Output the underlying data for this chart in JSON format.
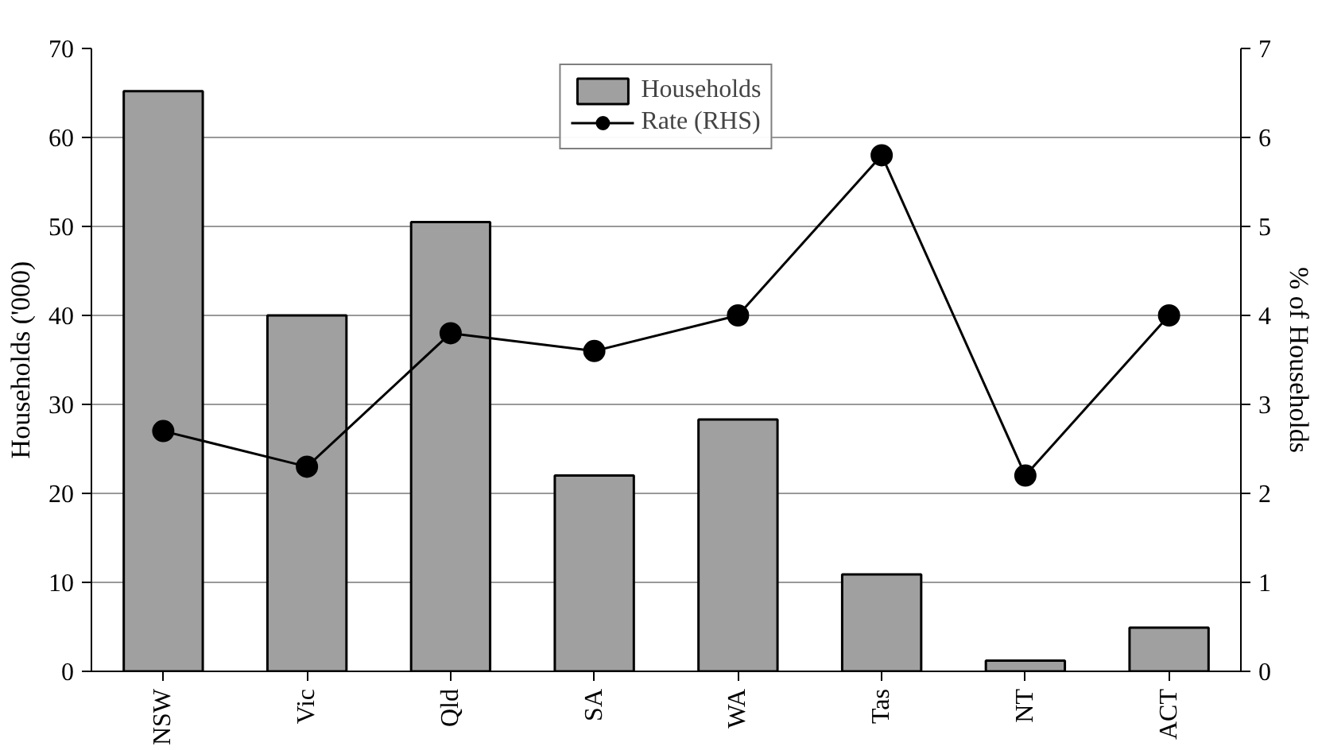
{
  "chart_data": {
    "type": "bar",
    "ylabel": "Households ('000)",
    "y2label": "% of Households",
    "categories": [
      "NSW",
      "Vic",
      "Qld",
      "SA",
      "WA",
      "Tas",
      "NT",
      "ACT"
    ],
    "series": [
      {
        "name": "Households",
        "color": "#a0a0a0",
        "values": [
          65.2,
          40,
          50.5,
          22,
          28.3,
          10.9,
          1.2,
          4.9
        ]
      },
      {
        "name": "Rate (RHS)",
        "type": "line",
        "axis": "y2",
        "color": "#000000",
        "marker": "circle",
        "values": [
          2.7,
          2.3,
          3.8,
          3.6,
          4.0,
          5.8,
          2.2,
          4.0
        ]
      }
    ],
    "ylim": [
      0,
      70
    ],
    "yticks": [
      0,
      10,
      20,
      30,
      40,
      50,
      60,
      70
    ],
    "y2lim": [
      0,
      7
    ],
    "y2ticks": [
      0,
      1,
      2,
      3,
      4,
      5,
      6,
      7
    ],
    "grid": "y",
    "legend": "top"
  }
}
